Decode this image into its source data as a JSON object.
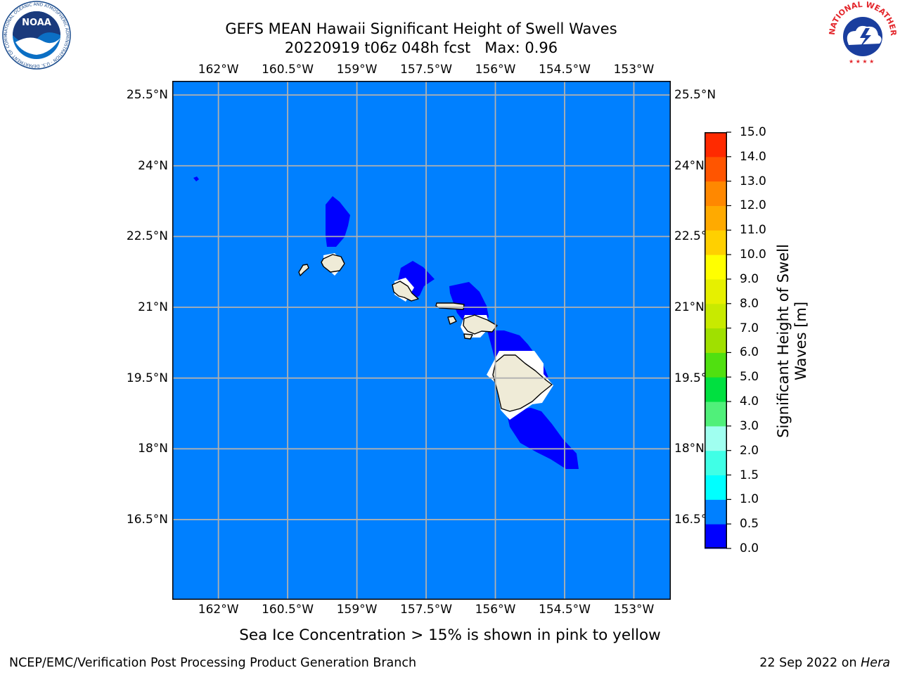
{
  "header": {
    "title_line1": "GEFS MEAN Hawaii Significant Height of Swell Waves",
    "title_line2": "20220919 t06z 048h fcst   Max: 0.96"
  },
  "logos": {
    "left": {
      "text": "NOAA",
      "ring_text": "NATIONAL OCEANIC AND ATMOSPHERIC ADMINISTRATION · U.S. DEPARTMENT OF COMMERCE",
      "colors": [
        "#1a4b8c",
        "#0b6fc4",
        "#ffffff"
      ]
    },
    "right": {
      "ring_text": "NATIONAL WEATHER SERVICE",
      "colors": [
        "#e3262b",
        "#1a3e9e",
        "#ffffff"
      ]
    }
  },
  "map": {
    "projection": "PlateCarree",
    "lon_range": [
      -163,
      -152.2
    ],
    "lat_range": [
      14.8,
      25.8
    ],
    "lon_ticks": [
      -162,
      -160.5,
      -159,
      -157.5,
      -156,
      -154.5,
      -153
    ],
    "lat_ticks": [
      25.5,
      24,
      22.5,
      21,
      19.5,
      18,
      16.5
    ],
    "lon_tick_labels": [
      "162°W",
      "160.5°W",
      "159°W",
      "157.5°W",
      "156°W",
      "154.5°W",
      "153°W"
    ],
    "lat_tick_labels": [
      "25.5°N",
      "24°N",
      "22.5°N",
      "21°N",
      "19.5°N",
      "18°N",
      "16.5°N"
    ],
    "grid": true,
    "background_color": "#0080ff",
    "land_color": "#efebd7",
    "contour_low_color": "#0000ff"
  },
  "colorbar": {
    "levels": [
      0.0,
      0.5,
      1.0,
      1.5,
      2.0,
      3.0,
      4.0,
      5.0,
      6.0,
      7.0,
      8.0,
      9.0,
      10.0,
      11.0,
      12.0,
      13.0,
      14.0,
      15.0
    ],
    "level_labels": [
      "0.0",
      "0.5",
      "1.0",
      "1.5",
      "2.0",
      "3.0",
      "4.0",
      "5.0",
      "6.0",
      "7.0",
      "8.0",
      "9.0",
      "10.0",
      "11.0",
      "12.0",
      "13.0",
      "14.0",
      "15.0"
    ],
    "colors": [
      "#0000ff",
      "#0080ff",
      "#00ffff",
      "#40ffe6",
      "#a0fff0",
      "#50f07a",
      "#00e040",
      "#50e010",
      "#a0e000",
      "#c8ea00",
      "#e6f000",
      "#ffff00",
      "#ffd000",
      "#ffaa00",
      "#ff8800",
      "#ff5500",
      "#ff2a00",
      "#ff0000"
    ],
    "label_line1": "Significant Height of Swell",
    "label_line2": "Waves [m]"
  },
  "footer": {
    "note": "Sea Ice Concentration > 15% is shown in pink to yellow",
    "credit": "NCEP/EMC/Verification Post Processing Product Generation Branch",
    "date": "22 Sep 2022 on",
    "machine": "Hera"
  }
}
